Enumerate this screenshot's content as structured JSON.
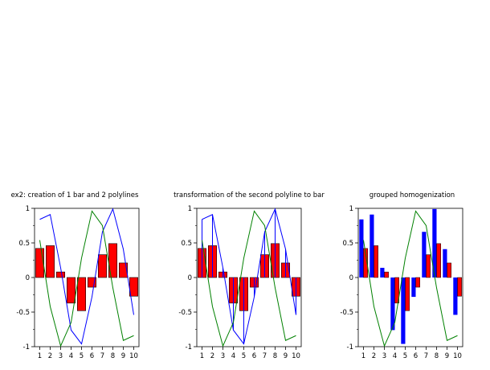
{
  "chart_data": [
    {
      "type": "bar",
      "mode": "bar_with_polylines",
      "title": "ex2: creation of 1 bar and 2 polylines",
      "categories": [
        "1",
        "2",
        "3",
        "4",
        "5",
        "6",
        "7",
        "8",
        "9",
        "10"
      ],
      "x": [
        1,
        2,
        3,
        4,
        5,
        6,
        7,
        8,
        9,
        10
      ],
      "ylim": [
        -1,
        1
      ],
      "xlim": [
        0.5,
        10.5
      ],
      "yticks": [
        "-1",
        "-0.5",
        "0",
        "0.5",
        "1"
      ],
      "series": [
        {
          "kind": "bar",
          "color": "#ff0000",
          "values": [
            0.42,
            0.46,
            0.08,
            -0.37,
            -0.48,
            -0.14,
            0.33,
            0.49,
            0.21,
            -0.27
          ]
        },
        {
          "kind": "line",
          "color": "#0000ff",
          "values": [
            0.84,
            0.91,
            0.14,
            -0.76,
            -0.96,
            -0.28,
            0.66,
            0.99,
            0.41,
            -0.54
          ]
        },
        {
          "kind": "line",
          "color": "#008000",
          "values": [
            0.54,
            -0.42,
            -0.99,
            -0.65,
            0.28,
            0.96,
            0.75,
            -0.15,
            -0.91,
            -0.84
          ]
        }
      ]
    },
    {
      "type": "bar",
      "mode": "polyline_to_bar",
      "title": "transformation of the second polyline to bar",
      "categories": [
        "1",
        "2",
        "3",
        "4",
        "5",
        "6",
        "7",
        "8",
        "9",
        "10"
      ],
      "x": [
        1,
        2,
        3,
        4,
        5,
        6,
        7,
        8,
        9,
        10
      ],
      "ylim": [
        -1,
        1
      ],
      "xlim": [
        0.5,
        10.5
      ],
      "yticks": [
        "-1",
        "-0.5",
        "0",
        "0.5",
        "1"
      ],
      "series": [
        {
          "kind": "bar",
          "color": "#ff0000",
          "values": [
            0.42,
            0.46,
            0.08,
            -0.37,
            -0.48,
            -0.14,
            0.33,
            0.49,
            0.21,
            -0.27
          ]
        },
        {
          "kind": "thinbar",
          "color": "#0000ff",
          "values": [
            0.84,
            0.91,
            0.14,
            -0.76,
            -0.96,
            -0.28,
            0.66,
            0.99,
            0.41,
            -0.54
          ]
        },
        {
          "kind": "line",
          "color": "#0000ff",
          "values": [
            0.84,
            0.91,
            0.14,
            -0.76,
            -0.96,
            -0.28,
            0.66,
            0.99,
            0.41,
            -0.54
          ]
        },
        {
          "kind": "line",
          "color": "#008000",
          "values": [
            0.54,
            -0.42,
            -0.99,
            -0.65,
            0.28,
            0.96,
            0.75,
            -0.15,
            -0.91,
            -0.84
          ]
        }
      ]
    },
    {
      "type": "bar",
      "mode": "grouped",
      "title": "grouped homogenization",
      "categories": [
        "1",
        "2",
        "3",
        "4",
        "5",
        "6",
        "7",
        "8",
        "9",
        "10"
      ],
      "x": [
        1,
        2,
        3,
        4,
        5,
        6,
        7,
        8,
        9,
        10
      ],
      "ylim": [
        -1,
        1
      ],
      "xlim": [
        0.5,
        10.5
      ],
      "yticks": [
        "-1",
        "-0.5",
        "0",
        "0.5",
        "1"
      ],
      "series": [
        {
          "kind": "groupbar",
          "color": "#0000ff",
          "values": [
            0.84,
            0.91,
            0.14,
            -0.76,
            -0.96,
            -0.28,
            0.66,
            0.99,
            0.41,
            -0.54
          ]
        },
        {
          "kind": "groupbar",
          "color": "#ff0000",
          "values": [
            0.42,
            0.46,
            0.08,
            -0.37,
            -0.48,
            -0.14,
            0.33,
            0.49,
            0.21,
            -0.27
          ]
        },
        {
          "kind": "line",
          "color": "#008000",
          "values": [
            0.54,
            -0.42,
            -0.99,
            -0.65,
            0.28,
            0.96,
            0.75,
            -0.15,
            -0.91,
            -0.84
          ]
        }
      ]
    }
  ]
}
